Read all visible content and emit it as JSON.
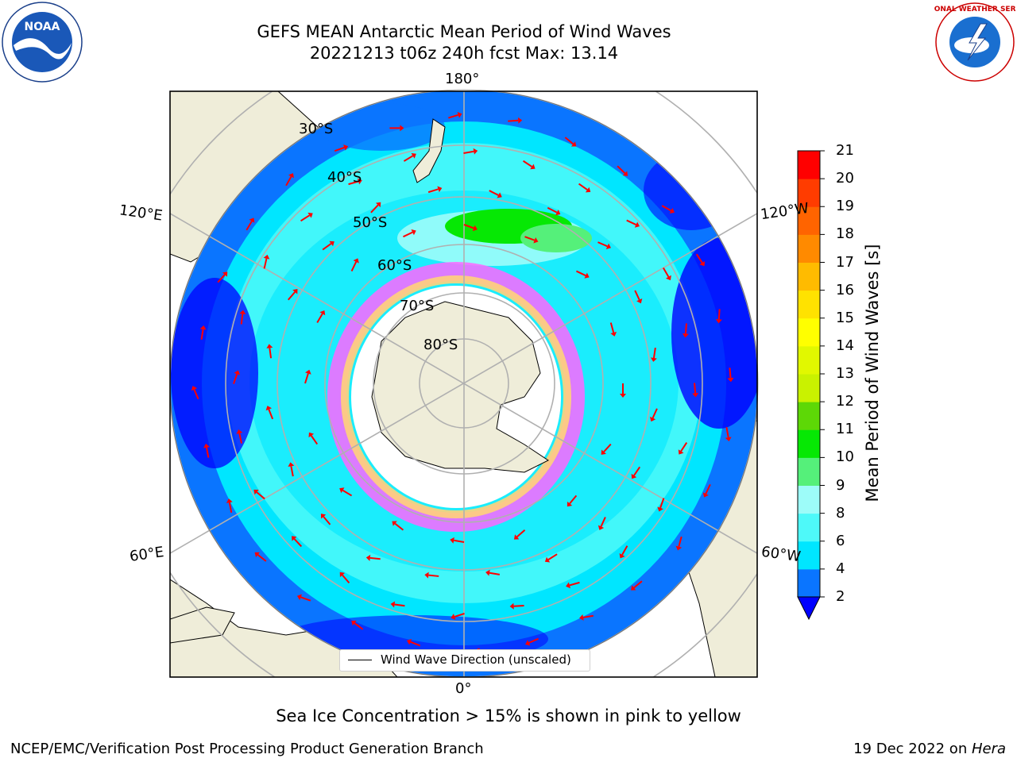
{
  "header": {
    "title_line1": "GEFS MEAN Antarctic Mean Period of Wind Waves",
    "title_line2": "20221213 t06z 240h fcst   Max: 13.14"
  },
  "logos": {
    "left": {
      "name": "noaa-logo",
      "text": "NOAA"
    },
    "right": {
      "name": "nws-logo",
      "text": "NATIONAL WEATHER SERVICE"
    }
  },
  "map": {
    "longitude_labels": [
      "180°",
      "120°E",
      "120°W",
      "60°E",
      "60°W",
      "0°"
    ],
    "latitude_labels": [
      "30°S",
      "40°S",
      "50°S",
      "60°S",
      "70°S",
      "80°S"
    ],
    "legend": {
      "label": "Wind Wave Direction (unscaled)",
      "line_color": "#000000"
    },
    "arrow_color": "#ff0000",
    "land_color": "#efedd9"
  },
  "colorbar": {
    "label": "Mean Period of Wind Waves [s]",
    "ticks": [
      "2",
      "4",
      "6",
      "8",
      "9",
      "10",
      "11",
      "12",
      "13",
      "14",
      "15",
      "16",
      "17",
      "18",
      "19",
      "20",
      "21"
    ],
    "colors": [
      "#0a75ff",
      "#00e6ff",
      "#4ef9f9",
      "#9dfcf9",
      "#55f07a",
      "#06e804",
      "#5dd806",
      "#c9f200",
      "#e1f800",
      "#ffff00",
      "#ffe200",
      "#ffbb00",
      "#ff8a00",
      "#ff6400",
      "#ff3c00",
      "#ff0000"
    ],
    "extend_color": "#0000ff"
  },
  "note": "Sea Ice Concentration > 15% is shown in pink to yellow",
  "footer": {
    "left": "NCEP/EMC/Verification Post Processing Product Generation Branch",
    "right_prefix": "19 Dec 2022 on ",
    "right_host": "Hera"
  }
}
